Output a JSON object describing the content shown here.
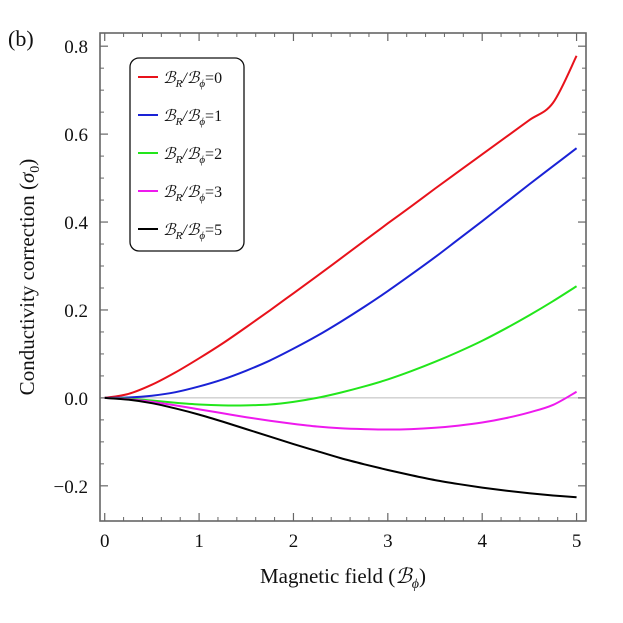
{
  "panel_label": "(b)",
  "chart_data": {
    "type": "line",
    "title": "",
    "xlabel": "Magnetic field (",
    "xlabel_unit": "ℬ",
    "xlabel_unit_sub": "ϕ",
    "xlabel_close": ")",
    "ylabel": "Conductivity correction (",
    "ylabel_unit": "σ",
    "ylabel_unit_sub": "0",
    "ylabel_close": ")",
    "xlim": [
      -0.05,
      5.1
    ],
    "ylim": [
      -0.28,
      0.83
    ],
    "xticks": [
      0,
      1,
      2,
      3,
      4,
      5
    ],
    "xtick_labels": [
      "0",
      "1",
      "2",
      "3",
      "4",
      "5"
    ],
    "yticks": [
      -0.2,
      0.0,
      0.2,
      0.4,
      0.6,
      0.8
    ],
    "ytick_labels": [
      "−0.2",
      "0.0",
      "0.2",
      "0.4",
      "0.6",
      "0.8"
    ],
    "legend_position": "top-left",
    "zero_line": true,
    "x": [
      0,
      0.25,
      0.5,
      0.75,
      1.0,
      1.25,
      1.5,
      1.75,
      2.0,
      2.25,
      2.5,
      2.75,
      3.0,
      3.25,
      3.5,
      3.75,
      4.0,
      4.25,
      4.5,
      4.75,
      5.0
    ],
    "series": [
      {
        "name": "ℬR/ℬϕ=0",
        "label_main": "ℬ",
        "label_sub1": "R",
        "label_mid": "/ℬ",
        "label_sub2": "ϕ",
        "label_val": "=0",
        "color": "#e8121b",
        "values": [
          0,
          0.009,
          0.03,
          0.058,
          0.09,
          0.124,
          0.161,
          0.199,
          0.238,
          0.277,
          0.317,
          0.357,
          0.397,
          0.436,
          0.476,
          0.515,
          0.554,
          0.593,
          0.632,
          0.671,
          0.778
        ]
      },
      {
        "name": "ℬR/ℬϕ=1",
        "label_main": "ℬ",
        "label_sub1": "R",
        "label_mid": "/ℬ",
        "label_sub2": "ϕ",
        "label_val": "=1",
        "color": "#1a22d6",
        "values": [
          0,
          0.001,
          0.005,
          0.013,
          0.026,
          0.042,
          0.062,
          0.085,
          0.112,
          0.141,
          0.173,
          0.207,
          0.243,
          0.281,
          0.32,
          0.361,
          0.402,
          0.444,
          0.486,
          0.527,
          0.568
        ]
      },
      {
        "name": "ℬR/ℬϕ=2",
        "label_main": "ℬ",
        "label_sub1": "R",
        "label_mid": "/ℬ",
        "label_sub2": "ϕ",
        "label_val": "=2",
        "color": "#22e61b",
        "values": [
          0,
          -0.002,
          -0.006,
          -0.011,
          -0.015,
          -0.017,
          -0.017,
          -0.015,
          -0.009,
          0.0,
          0.012,
          0.026,
          0.042,
          0.061,
          0.082,
          0.105,
          0.13,
          0.158,
          0.188,
          0.22,
          0.254
        ]
      },
      {
        "name": "ℬR/ℬϕ=3",
        "label_main": "ℬ",
        "label_sub1": "R",
        "label_mid": "/ℬ",
        "label_sub2": "ϕ",
        "label_val": "=3",
        "color": "#ee1aee",
        "values": [
          0,
          -0.003,
          -0.009,
          -0.017,
          -0.026,
          -0.035,
          -0.044,
          -0.052,
          -0.059,
          -0.065,
          -0.069,
          -0.071,
          -0.072,
          -0.071,
          -0.068,
          -0.063,
          -0.056,
          -0.046,
          -0.033,
          -0.016,
          0.014
        ]
      },
      {
        "name": "ℬR/ℬϕ=5",
        "label_main": "ℬ",
        "label_sub1": "R",
        "label_mid": "/ℬ",
        "label_sub2": "ϕ",
        "label_val": "=5",
        "color": "#000000",
        "values": [
          0,
          -0.004,
          -0.012,
          -0.024,
          -0.038,
          -0.054,
          -0.071,
          -0.088,
          -0.105,
          -0.121,
          -0.137,
          -0.151,
          -0.164,
          -0.176,
          -0.187,
          -0.196,
          -0.204,
          -0.211,
          -0.217,
          -0.222,
          -0.226
        ]
      }
    ]
  }
}
